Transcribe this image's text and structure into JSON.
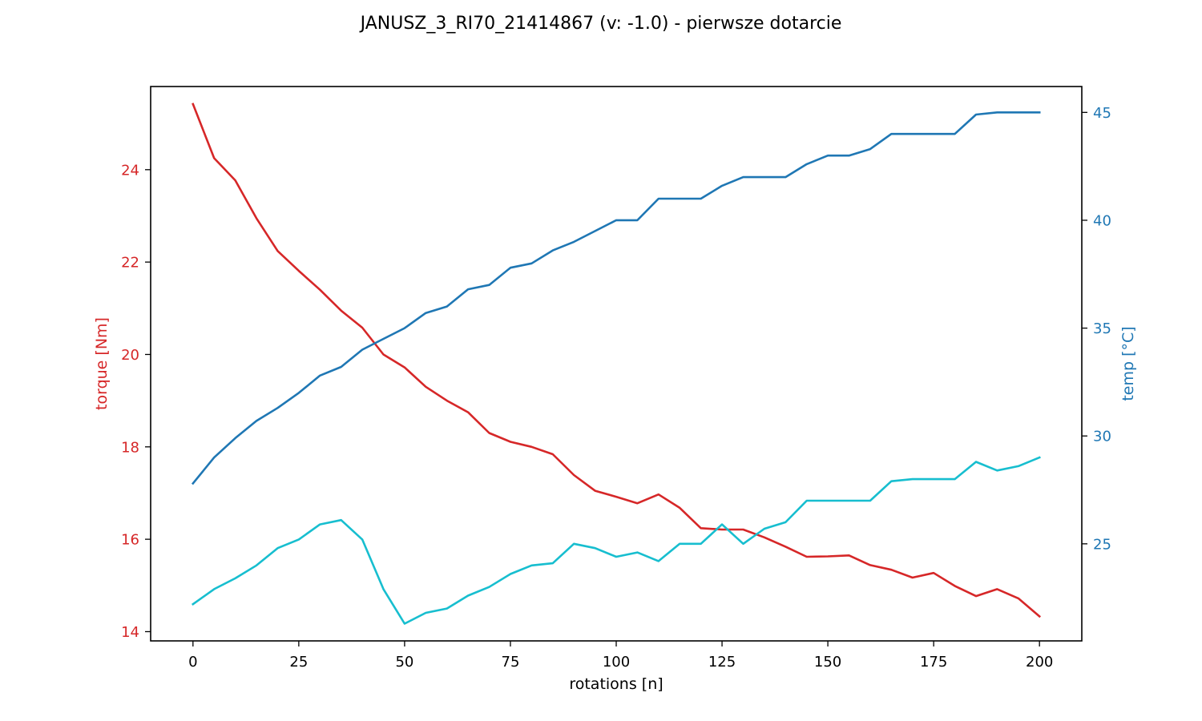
{
  "chart_data": {
    "type": "line",
    "title": "JANUSZ_3_RI70_21414867 (v: -1.0) - pierwsze dotarcie",
    "xlabel": "rotations [n]",
    "ylabel_left": "torque [Nm]",
    "ylabel_right": "temp [°C]",
    "xlim": [
      -10,
      210
    ],
    "ylim_left": [
      13.8,
      25.8
    ],
    "ylim_right": [
      20.5,
      46.2
    ],
    "x_ticks": [
      0,
      25,
      50,
      75,
      100,
      125,
      150,
      175,
      200
    ],
    "y_ticks_left": [
      14,
      16,
      18,
      20,
      22,
      24
    ],
    "y_ticks_right": [
      25,
      30,
      35,
      40,
      45
    ],
    "grid": false,
    "colors": {
      "torque": "#d62728",
      "temp_dark": "#1f77b4",
      "temp_light": "#17becf"
    },
    "x": [
      0,
      5,
      10,
      15,
      20,
      25,
      30,
      35,
      40,
      45,
      50,
      55,
      60,
      65,
      70,
      75,
      80,
      85,
      90,
      95,
      100,
      105,
      110,
      115,
      120,
      125,
      130,
      135,
      140,
      145,
      150,
      155,
      160,
      165,
      170,
      175,
      180,
      185,
      190,
      195,
      200
    ],
    "series": [
      {
        "axis": "left",
        "color_key": "torque",
        "values": [
          25.42,
          24.25,
          23.77,
          22.95,
          22.24,
          21.81,
          21.4,
          20.95,
          20.58,
          20.0,
          19.72,
          19.3,
          19.0,
          18.75,
          18.3,
          18.11,
          18.0,
          17.84,
          17.39,
          17.05,
          16.92,
          16.78,
          16.97,
          16.68,
          16.24,
          16.21,
          16.21,
          16.04,
          15.84,
          15.62,
          15.63,
          15.65,
          15.44,
          15.34,
          15.17,
          15.27,
          14.99,
          14.77,
          14.92,
          14.72,
          14.33
        ]
      },
      {
        "axis": "right",
        "color_key": "temp_dark",
        "values": [
          27.8,
          29.0,
          29.9,
          30.7,
          31.3,
          32.0,
          32.8,
          33.2,
          34.0,
          34.5,
          35.0,
          35.7,
          36.0,
          36.8,
          37.0,
          37.8,
          38.0,
          38.6,
          39.0,
          39.5,
          40.0,
          40.0,
          41.0,
          41.0,
          41.0,
          41.6,
          42.0,
          42.0,
          42.0,
          42.6,
          43.0,
          43.0,
          43.3,
          44.0,
          44.0,
          44.0,
          44.0,
          44.9,
          45.0,
          45.0,
          45.0
        ]
      },
      {
        "axis": "right",
        "color_key": "temp_light",
        "values": [
          22.2,
          22.9,
          23.4,
          24.0,
          24.8,
          25.2,
          25.9,
          26.1,
          25.2,
          22.9,
          21.3,
          21.8,
          22.0,
          22.6,
          23.0,
          23.6,
          24.0,
          24.1,
          25.0,
          24.8,
          24.4,
          24.6,
          24.2,
          25.0,
          25.0,
          25.9,
          25.0,
          25.7,
          26.0,
          27.0,
          27.0,
          27.0,
          27.0,
          27.9,
          28.0,
          28.0,
          28.0,
          28.8,
          28.4,
          28.6,
          29.0
        ]
      }
    ]
  }
}
